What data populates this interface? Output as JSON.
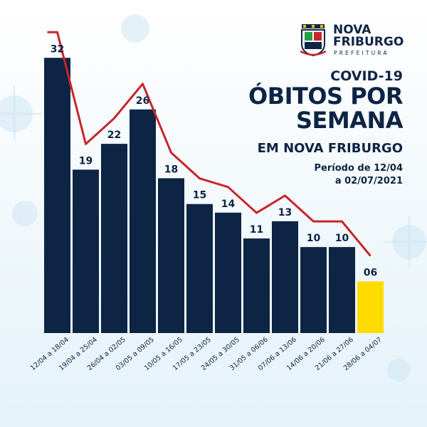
{
  "brand": {
    "name_line1": "NOVA",
    "name_line2": "FRIBURGO",
    "subtitle": "PREFEITURA"
  },
  "header": {
    "kicker": "COVID-19",
    "title_line1": "ÓBITOS POR",
    "title_line2": "SEMANA",
    "subtitle": "EM NOVA FRIBURGO",
    "period_line1": "Período de 12/04",
    "period_line2": "a 02/07/2021"
  },
  "colors": {
    "bar": "#0d2444",
    "highlight_bar": "#ffdc00",
    "trend_line": "#c8252b",
    "text": "#0d2444"
  },
  "chart_data": {
    "type": "bar",
    "categories": [
      "12/04 a 18/04",
      "19/04 a 25/04",
      "26/04 a 02/05",
      "03/05 a 09/05",
      "10/05 a 16/05",
      "17/05 a 23/05",
      "24/05 a 30/05",
      "31/05 a 06/06",
      "07/06 a 13/06",
      "14/06 a 20/06",
      "21/06 a 27/06",
      "28/06 a 04/07"
    ],
    "values": [
      32,
      19,
      22,
      26,
      18,
      15,
      14,
      11,
      13,
      10,
      10,
      6
    ],
    "value_labels": [
      "32",
      "19",
      "22",
      "26",
      "18",
      "15",
      "14",
      "11",
      "13",
      "10",
      "10",
      "06"
    ],
    "highlight_index": 11,
    "trend_line": true,
    "ylim": [
      0,
      35
    ],
    "grid": false,
    "legend": "none",
    "title": "",
    "xlabel": "",
    "ylabel": ""
  }
}
